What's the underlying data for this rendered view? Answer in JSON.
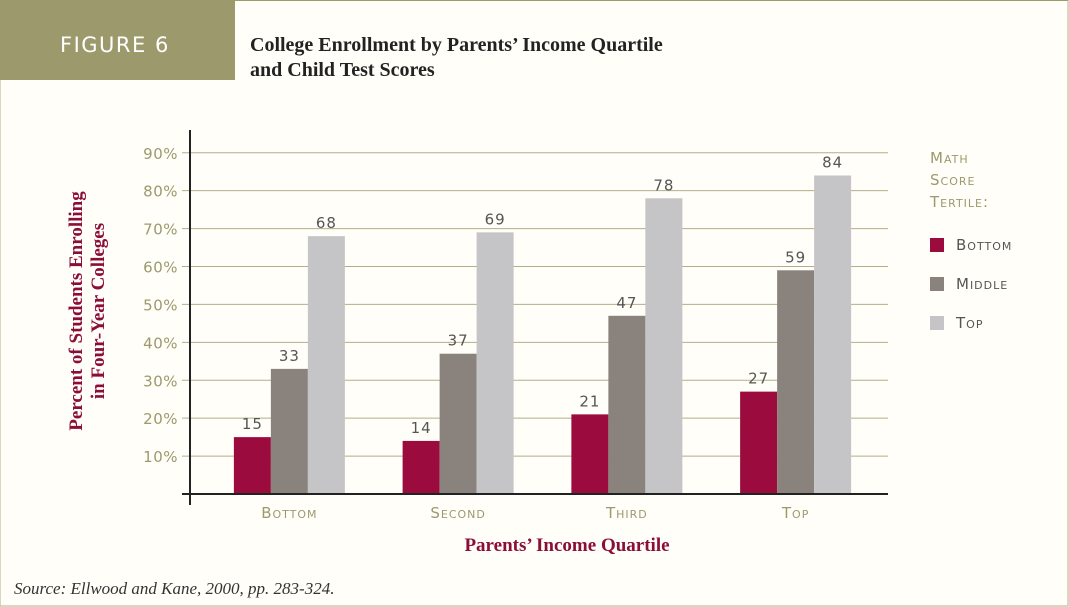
{
  "chart_data": {
    "type": "bar",
    "figure_label": "FIGURE 6",
    "title": [
      "College Enrollment by Parents’ Income Quartile",
      "and Child Test Scores"
    ],
    "y_label": [
      "Percent of Students Enrolling",
      "in Four-Year Colleges"
    ],
    "x_label": "Parents’ Income Quartile",
    "legend_title": [
      "Math",
      "Score",
      "Tertile:"
    ],
    "legend": "right",
    "categories": [
      "Bottom",
      "Second",
      "Third",
      "Top"
    ],
    "series": [
      {
        "name": "Bottom",
        "color": "#9b0b3d",
        "values": [
          15,
          14,
          21,
          27
        ]
      },
      {
        "name": "Middle",
        "color": "#8a827c",
        "values": [
          33,
          37,
          47,
          59
        ]
      },
      {
        "name": "Top",
        "color": "#c5c5c7",
        "values": [
          68,
          69,
          78,
          84
        ]
      }
    ],
    "ylim": [
      0,
      96
    ],
    "yticks": [
      {
        "value": 10,
        "label": "10%"
      },
      {
        "value": 20,
        "label": "20%"
      },
      {
        "value": 30,
        "label": "30%"
      },
      {
        "value": 40,
        "label": "40%"
      },
      {
        "value": 50,
        "label": "50%"
      },
      {
        "value": 60,
        "label": "60%"
      },
      {
        "value": 70,
        "label": "70%"
      },
      {
        "value": 80,
        "label": "80%"
      },
      {
        "value": 90,
        "label": "90%"
      }
    ],
    "grid": true,
    "source": "Source: Ellwood and Kane, 2000, pp. 283-324."
  }
}
